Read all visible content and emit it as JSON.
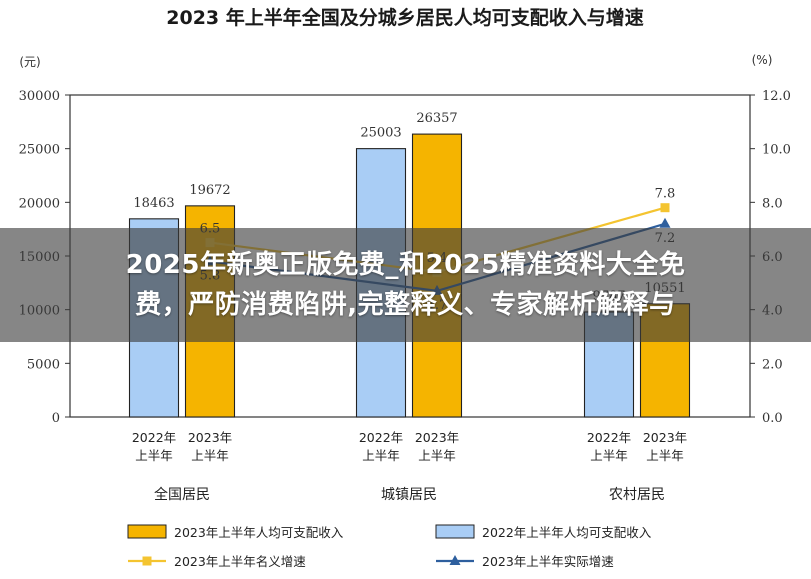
{
  "chart_data": {
    "type": "bar",
    "title": "2023 年上半年全国及分城乡居民人均可支配收入与增速",
    "left_unit": "(元)",
    "right_unit": "(%)",
    "ylim": [
      0,
      30000
    ],
    "y_ticks": [
      "0",
      "5000",
      "10000",
      "15000",
      "20000",
      "25000",
      "30000"
    ],
    "y2lim": [
      0,
      12
    ],
    "y2_ticks": [
      "0.0",
      "2.0",
      "4.0",
      "6.0",
      "8.0",
      "10.0",
      "12.0"
    ],
    "groups": [
      {
        "name": "全国居民",
        "bar_label_2022": "2022年\n上半年",
        "bar_label_2023": "2023年\n上半年"
      },
      {
        "name": "城镇居民",
        "bar_label_2022": "2022年\n上半年",
        "bar_label_2023": "2023年\n上半年"
      },
      {
        "name": "农村居民",
        "bar_label_2022": "2022年\n上半年",
        "bar_label_2023": "2023年\n上半年"
      }
    ],
    "bar_series": [
      {
        "name": "2022年上半年人均可支配收入",
        "color": "#a9cdf5",
        "values": [
          18463,
          25003,
          9787
        ],
        "labels": [
          "18463",
          "25003",
          "9787"
        ]
      },
      {
        "name": "2023年上半年人均可支配收入",
        "color": "#f5b400",
        "values": [
          19672,
          26357,
          10551
        ],
        "labels": [
          "19672",
          "26357",
          "10551"
        ]
      }
    ],
    "line_series": [
      {
        "name": "2023年上半年名义增速",
        "color": "#f4c430",
        "values": [
          6.5,
          5.4,
          7.8
        ],
        "labels": [
          "6.5",
          "5.4",
          "7.8"
        ]
      },
      {
        "name": "2023年上半年实际增速",
        "color": "#2e5f9e",
        "values": [
          5.8,
          4.7,
          7.2
        ],
        "labels": [
          "5.8",
          "4.7",
          "7.2"
        ]
      }
    ],
    "legend": [
      {
        "label": "2023年上半年人均可支配收入"
      },
      {
        "label": "2022年上半年人均可支配收入"
      },
      {
        "label": "2023年上半年名义增速"
      },
      {
        "label": "2023年上半年实际增速"
      }
    ],
    "legend_position": "bottom"
  },
  "overlay": {
    "line1": "2025年新奥正版免费_和2025精准资料大全免",
    "line2": "费，严防消费陷阱,完整释义、专家解析解释与"
  }
}
